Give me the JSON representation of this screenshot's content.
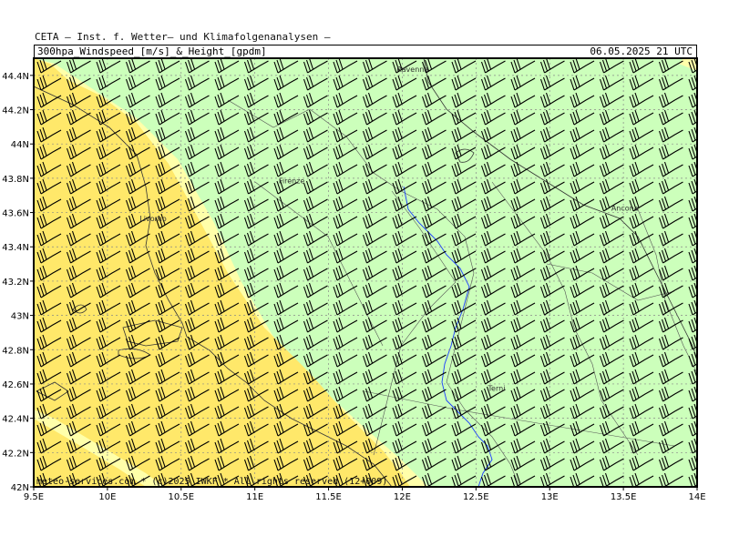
{
  "header": {
    "institute": "CETA — Inst. f. Wetter— und Klimafolgenanalysen —",
    "parameter": "300hpa_Windspeed_[m/s]_&_Height_[gpdm]",
    "valid_time": "06.05.2025 21 UTC"
  },
  "credit": "meteo-services.com * (c)2025 IWKF * All rights reserved (12+009)",
  "axes": {
    "x_ticks": [
      {
        "value": 9.5,
        "label": "9.5E"
      },
      {
        "value": 10,
        "label": "10E"
      },
      {
        "value": 10.5,
        "label": "10.5E"
      },
      {
        "value": 11,
        "label": "11E"
      },
      {
        "value": 11.5,
        "label": "11.5E"
      },
      {
        "value": 12,
        "label": "12E"
      },
      {
        "value": 12.5,
        "label": "12.5E"
      },
      {
        "value": 13,
        "label": "13E"
      },
      {
        "value": 13.5,
        "label": "13.5E"
      },
      {
        "value": 14,
        "label": "14E"
      }
    ],
    "y_ticks": [
      {
        "value": 42.0,
        "label": "42N"
      },
      {
        "value": 42.2,
        "label": "42.2N"
      },
      {
        "value": 42.4,
        "label": "42.4N"
      },
      {
        "value": 42.6,
        "label": "42.6N"
      },
      {
        "value": 42.8,
        "label": "42.8N"
      },
      {
        "value": 43.0,
        "label": "43N"
      },
      {
        "value": 43.2,
        "label": "43.2N"
      },
      {
        "value": 43.4,
        "label": "43.4N"
      },
      {
        "value": 43.6,
        "label": "43.6N"
      },
      {
        "value": 43.8,
        "label": "43.8N"
      },
      {
        "value": 44.0,
        "label": "44N"
      },
      {
        "value": 44.2,
        "label": "44.2N"
      },
      {
        "value": 44.4,
        "label": "44.4N"
      }
    ],
    "lon_range": [
      9.5,
      14.0
    ],
    "lat_range": [
      42.0,
      44.5
    ]
  },
  "cities": [
    {
      "name": "Ravenna",
      "lon": 12.07,
      "lat": 44.42
    },
    {
      "name": "Firenze",
      "lon": 11.25,
      "lat": 43.77
    },
    {
      "name": "Livorno",
      "lon": 10.31,
      "lat": 43.55
    },
    {
      "name": "Ancona",
      "lon": 13.51,
      "lat": 43.61
    },
    {
      "name": "Terni",
      "lon": 12.64,
      "lat": 42.56
    }
  ],
  "colors": {
    "wind_30_40": "#ffe86a",
    "wind_40_50": "#ffffaa",
    "wind_50_60": "#ccffbb",
    "grid": "#888888",
    "border": "#333333",
    "river": "#1a3cff"
  }
}
